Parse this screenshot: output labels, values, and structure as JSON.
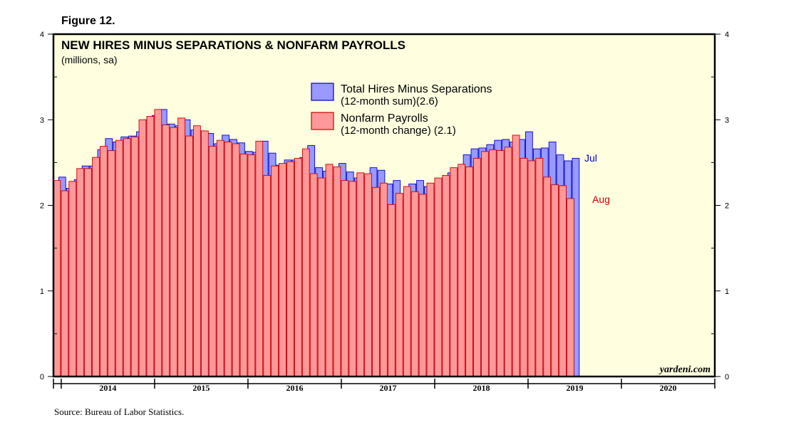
{
  "figure_label": "Figure 12.",
  "source_note": "Source: Bureau of Labor Statistics.",
  "watermark": "yardeni.com",
  "colors": {
    "plot_background": "#ffffe0",
    "hires_fill": "#9999ff",
    "hires_stroke": "#0000cc",
    "payrolls_fill": "#ff9999",
    "payrolls_stroke": "#cc0000",
    "jul_label": "#0000cc",
    "aug_label": "#cc0000"
  },
  "chart_data": {
    "type": "bar",
    "title": "NEW HIRES MINUS SEPARATIONS & NONFARM PAYROLLS",
    "subtitle": "(millions, sa)",
    "ylim": [
      0,
      4
    ],
    "yticks": [
      "0",
      "1",
      "2",
      "3",
      "4"
    ],
    "x_start": "2013-12",
    "x_end": "2020-12",
    "year_labels": [
      "2014",
      "2015",
      "2016",
      "2017",
      "2018",
      "2019",
      "2020"
    ],
    "legend_position": "top-center",
    "series": [
      {
        "name": "Total Hires Minus Separations",
        "legend_line1": "Total Hires Minus Separations",
        "legend_line2": "(12-month sum)(2.6)",
        "end_label": "Jul",
        "values": [
          2.33,
          2.2,
          2.3,
          2.46,
          2.46,
          2.65,
          2.78,
          2.74,
          2.8,
          2.81,
          2.86,
          3.0,
          3.05,
          3.12,
          2.95,
          2.93,
          3.0,
          2.88,
          2.87,
          2.84,
          2.72,
          2.82,
          2.77,
          2.73,
          2.63,
          2.62,
          2.75,
          2.61,
          2.47,
          2.53,
          2.53,
          2.56,
          2.7,
          2.44,
          2.4,
          2.35,
          2.49,
          2.39,
          2.32,
          2.33,
          2.44,
          2.41,
          2.25,
          2.29,
          2.06,
          2.25,
          2.29,
          2.22,
          2.2,
          2.31,
          2.38,
          2.43,
          2.59,
          2.66,
          2.67,
          2.71,
          2.76,
          2.77,
          2.74,
          2.77,
          2.86,
          2.66,
          2.67,
          2.74,
          2.59,
          2.52,
          2.55
        ]
      },
      {
        "name": "Nonfarm Payrolls",
        "legend_line1": "Nonfarm Payrolls",
        "legend_line2": "(12-month change) (2.1)",
        "end_label": "Aug",
        "values": [
          2.29,
          2.17,
          2.28,
          2.43,
          2.43,
          2.56,
          2.69,
          2.64,
          2.76,
          2.78,
          2.8,
          3.0,
          3.04,
          3.12,
          2.94,
          2.91,
          3.02,
          2.81,
          2.93,
          2.87,
          2.69,
          2.76,
          2.74,
          2.72,
          2.6,
          2.59,
          2.75,
          2.35,
          2.46,
          2.49,
          2.51,
          2.55,
          2.66,
          2.37,
          2.32,
          2.48,
          2.45,
          2.29,
          2.28,
          2.38,
          2.37,
          2.21,
          2.26,
          2.01,
          2.14,
          2.22,
          2.16,
          2.13,
          2.26,
          2.32,
          2.35,
          2.44,
          2.48,
          2.45,
          2.55,
          2.63,
          2.65,
          2.64,
          2.68,
          2.82,
          2.55,
          2.52,
          2.55,
          2.33,
          2.24,
          2.23,
          2.08
        ]
      }
    ]
  }
}
